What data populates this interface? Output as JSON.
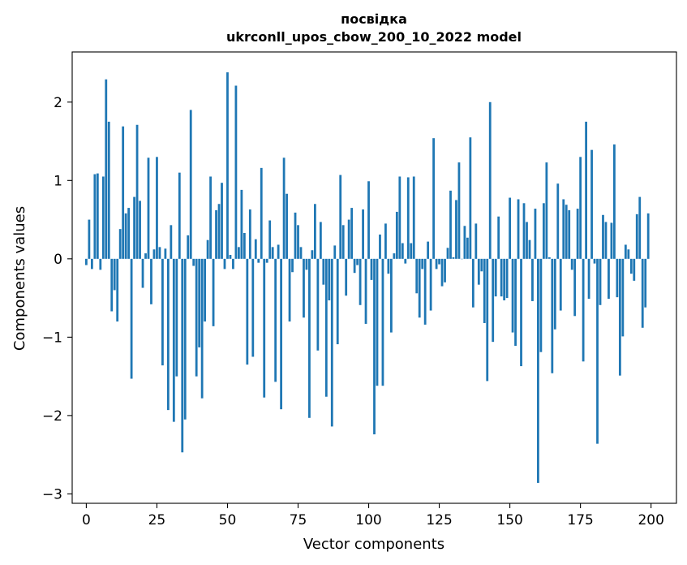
{
  "chart_data": {
    "type": "bar",
    "title_line1": "посвідка",
    "title_line2": "ukrconll_upos_cbow_200_10_2022 model",
    "xlabel": "Vector components",
    "ylabel": "Components values",
    "xlim": [
      -5,
      209
    ],
    "ylim": [
      -3.12,
      2.64
    ],
    "xticks": [
      0,
      25,
      50,
      75,
      100,
      125,
      150,
      175,
      200
    ],
    "xtick_labels": [
      "0",
      "25",
      "50",
      "75",
      "100",
      "125",
      "150",
      "175",
      "200"
    ],
    "yticks": [
      -3,
      -2,
      -1,
      0,
      1,
      2
    ],
    "ytick_labels": [
      "−3",
      "−2",
      "−1",
      "0",
      "1",
      "2"
    ],
    "grid": false,
    "bar_color": "#1f77b4",
    "x": [
      0,
      1,
      2,
      3,
      4,
      5,
      6,
      7,
      8,
      9,
      10,
      11,
      12,
      13,
      14,
      15,
      16,
      17,
      18,
      19,
      20,
      21,
      22,
      23,
      24,
      25,
      26,
      27,
      28,
      29,
      30,
      31,
      32,
      33,
      34,
      35,
      36,
      37,
      38,
      39,
      40,
      41,
      42,
      43,
      44,
      45,
      46,
      47,
      48,
      49,
      50,
      51,
      52,
      53,
      54,
      55,
      56,
      57,
      58,
      59,
      60,
      61,
      62,
      63,
      64,
      65,
      66,
      67,
      68,
      69,
      70,
      71,
      72,
      73,
      74,
      75,
      76,
      77,
      78,
      79,
      80,
      81,
      82,
      83,
      84,
      85,
      86,
      87,
      88,
      89,
      90,
      91,
      92,
      93,
      94,
      95,
      96,
      97,
      98,
      99,
      100,
      101,
      102,
      103,
      104,
      105,
      106,
      107,
      108,
      109,
      110,
      111,
      112,
      113,
      114,
      115,
      116,
      117,
      118,
      119,
      120,
      121,
      122,
      123,
      124,
      125,
      126,
      127,
      128,
      129,
      130,
      131,
      132,
      133,
      134,
      135,
      136,
      137,
      138,
      139,
      140,
      141,
      142,
      143,
      144,
      145,
      146,
      147,
      148,
      149,
      150,
      151,
      152,
      153,
      154,
      155,
      156,
      157,
      158,
      159,
      160,
      161,
      162,
      163,
      164,
      165,
      166,
      167,
      168,
      169,
      170,
      171,
      172,
      173,
      174,
      175,
      176,
      177,
      178,
      179,
      180,
      181,
      182,
      183,
      184,
      185,
      186,
      187,
      188,
      189,
      190,
      191,
      192,
      193,
      194,
      195,
      196,
      197,
      198,
      199
    ],
    "values": [
      -0.08,
      0.5,
      -0.13,
      1.08,
      1.09,
      -0.14,
      1.05,
      2.29,
      1.75,
      -0.67,
      -0.4,
      -0.8,
      0.38,
      1.69,
      0.58,
      0.65,
      -1.53,
      0.79,
      1.71,
      0.74,
      -0.37,
      0.07,
      1.29,
      -0.58,
      0.12,
      1.3,
      0.15,
      -1.36,
      0.13,
      -1.93,
      0.43,
      -2.08,
      -1.5,
      1.1,
      -2.47,
      -2.05,
      0.3,
      1.9,
      -0.09,
      -1.5,
      -1.13,
      -1.78,
      -0.8,
      0.24,
      1.05,
      -0.86,
      0.62,
      0.7,
      0.97,
      -0.13,
      2.38,
      0.05,
      -0.13,
      2.21,
      0.15,
      0.88,
      0.33,
      -1.35,
      0.63,
      -1.25,
      0.25,
      -0.05,
      1.16,
      -1.77,
      -0.05,
      0.49,
      0.15,
      -1.57,
      0.18,
      -1.92,
      1.29,
      0.83,
      -0.8,
      -0.17,
      0.59,
      0.43,
      0.15,
      -0.75,
      -0.14,
      -2.03,
      0.11,
      0.7,
      -1.17,
      0.47,
      -0.33,
      -1.76,
      -0.53,
      -2.14,
      0.17,
      -1.09,
      1.07,
      0.43,
      -0.47,
      0.5,
      0.65,
      -0.18,
      -0.08,
      -0.59,
      0.63,
      -0.83,
      0.99,
      -0.27,
      -2.24,
      -1.62,
      0.31,
      -1.62,
      0.45,
      -0.19,
      -0.94,
      0.07,
      0.6,
      1.05,
      0.2,
      -0.06,
      1.04,
      0.2,
      1.05,
      -0.44,
      -0.75,
      -0.13,
      -0.84,
      0.22,
      -0.66,
      1.54,
      -0.13,
      -0.07,
      -0.35,
      -0.3,
      0.14,
      0.87,
      0.02,
      0.75,
      1.23,
      0.0,
      0.42,
      0.27,
      1.55,
      -0.62,
      0.45,
      -0.33,
      -0.16,
      -0.82,
      -1.56,
      2.0,
      -1.06,
      -0.48,
      0.54,
      -0.48,
      -0.53,
      -0.5,
      0.78,
      -0.94,
      -1.11,
      0.76,
      -1.37,
      0.71,
      0.47,
      0.24,
      -0.54,
      0.64,
      -2.86,
      -1.19,
      0.71,
      1.23,
      0.02,
      -1.46,
      -0.9,
      0.96,
      -0.66,
      0.76,
      0.69,
      0.62,
      -0.14,
      -0.73,
      0.64,
      1.3,
      -1.31,
      1.75,
      -0.51,
      1.39,
      -0.06,
      -2.36,
      -0.59,
      0.56,
      0.47,
      -0.51,
      0.46,
      1.46,
      -0.49,
      -1.49,
      -0.99,
      0.18,
      0.12,
      -0.19,
      -0.28,
      0.57,
      0.79,
      -0.88,
      -0.62,
      0.58
    ]
  }
}
